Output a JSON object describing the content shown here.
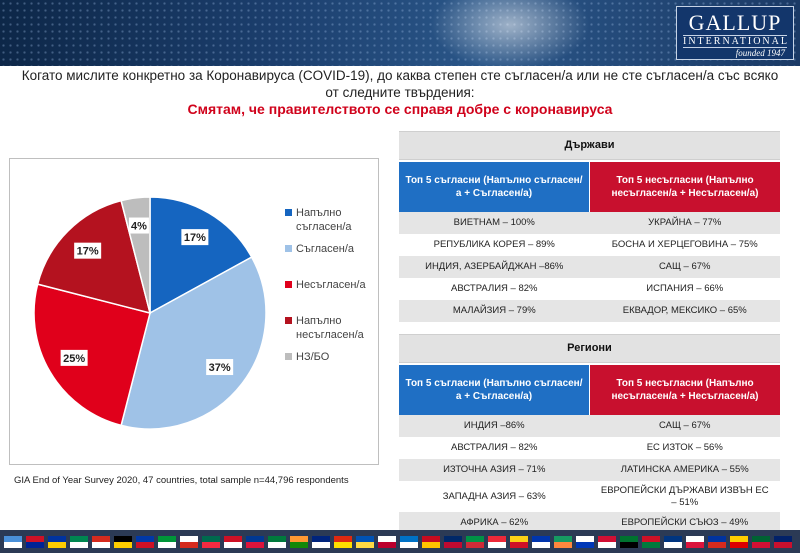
{
  "header": {
    "logo_main": "GALLUP",
    "logo_sub": "INTERNATIONAL",
    "logo_founded": "founded 1947"
  },
  "question": "Когато мислите конкретно за Коронавируса (COVID-19), до каква степен сте съгласен/а или не сте съгласен/а със всяко от следните твърдения:",
  "statement": "Смятам, че правителството се справя добре с коронавируса",
  "chart_data": {
    "type": "pie",
    "labels": [
      "Напълно съгласен/а",
      "Съгласен/а",
      "Несъгласен/а",
      "Напълно несъгласен/а",
      "НЗ/БО"
    ],
    "values": [
      17,
      37,
      25,
      17,
      4
    ],
    "value_labels": [
      "17%",
      "37%",
      "25%",
      "17%",
      "4%"
    ],
    "colors": [
      "#1565c0",
      "#9fc2e7",
      "#e0001b",
      "#b4121f",
      "#bdbdbd"
    ],
    "legend_placement": "right"
  },
  "source": "GIA End of Year Survey 2020, 47 countries,  total sample n=44,796 respondents",
  "countries": {
    "title": "Държави",
    "agree_header": "Топ 5 съгласни (Напълно съгласен/а + Съгласен/а)",
    "disagree_header": "Топ 5 несъгласни (Напълно несъгласен/а + Несъгласен/а)",
    "rows": [
      {
        "agree": "ВИЕТНАМ – 100%",
        "disagree": "УКРАЙНА – 77%"
      },
      {
        "agree": "РЕПУБЛИКА КОРЕЯ – 89%",
        "disagree": "БОСНА И ХЕРЦЕГОВИНА – 75%"
      },
      {
        "agree": "ИНДИЯ, АЗЕРБАЙДЖАН –86%",
        "disagree": "САЩ – 67%"
      },
      {
        "agree": "АВСТРАЛИЯ – 82%",
        "disagree": "ИСПАНИЯ – 66%"
      },
      {
        "agree": "МАЛАЙЗИЯ – 79%",
        "disagree": "ЕКВАДОР, МЕКСИКО – 65%"
      }
    ]
  },
  "regions": {
    "title": "Региони",
    "agree_header": "Топ 5 съгласни (Напълно съгласен/а + Съгласен/а)",
    "disagree_header": "Топ 5 несъгласни (Напълно несъгласен/а + Несъгласен/а)",
    "rows": [
      {
        "agree": "ИНДИЯ –86%",
        "disagree": "САЩ – 67%"
      },
      {
        "agree": "АВСТРАЛИЯ – 82%",
        "disagree": "ЕС ИЗТОК – 56%"
      },
      {
        "agree": "ИЗТОЧНА АЗИЯ – 71%",
        "disagree": "ЛАТИНСКА АМЕРИКА – 55%"
      },
      {
        "agree": "ЗАПАДНА АЗИЯ – 63%",
        "disagree": "ЕВРОПЕЙСКИ ДЪРЖАВИ ИЗВЪН ЕС – 51%"
      },
      {
        "agree": "АФРИКА – 62%",
        "disagree": "ЕВРОПЕЙСКИ СЪЮЗ – 49%"
      }
    ]
  },
  "flag_colors": [
    [
      "#4a90d9",
      "#ffffff"
    ],
    [
      "#ce1126",
      "#002395"
    ],
    [
      "#0033a0",
      "#ffcc00"
    ],
    [
      "#008751",
      "#ffffff"
    ],
    [
      "#d52b1e",
      "#ffffff"
    ],
    [
      "#000000",
      "#ffce00"
    ],
    [
      "#0038a8",
      "#ce1126"
    ],
    [
      "#009639",
      "#ffffff"
    ],
    [
      "#ffffff",
      "#d52b1e"
    ],
    [
      "#006a4e",
      "#f42a41"
    ],
    [
      "#ce1126",
      "#ffffff"
    ],
    [
      "#003893",
      "#dc143c"
    ],
    [
      "#007a3d",
      "#ffffff"
    ],
    [
      "#ff9933",
      "#138808"
    ],
    [
      "#00247d",
      "#ffffff"
    ],
    [
      "#de2910",
      "#ffde00"
    ],
    [
      "#0052b4",
      "#ffda44"
    ],
    [
      "#ffffff",
      "#bc002d"
    ],
    [
      "#0072c6",
      "#ffffff"
    ],
    [
      "#c60b1e",
      "#ffc400"
    ],
    [
      "#002868",
      "#bf0a30"
    ],
    [
      "#009246",
      "#ce2b37"
    ],
    [
      "#ed2939",
      "#ffffff"
    ],
    [
      "#fcd116",
      "#ce1126"
    ],
    [
      "#0035ad",
      "#ffffff"
    ],
    [
      "#169b62",
      "#ff883e"
    ],
    [
      "#ffffff",
      "#0038b8"
    ],
    [
      "#d21034",
      "#ffffff"
    ],
    [
      "#00732f",
      "#000000"
    ],
    [
      "#ce1126",
      "#007a3d"
    ],
    [
      "#003580",
      "#ffffff"
    ],
    [
      "#ffffff",
      "#dc143c"
    ],
    [
      "#0033a0",
      "#d52b1e"
    ],
    [
      "#ffce00",
      "#dd0000"
    ],
    [
      "#006233",
      "#d21034"
    ],
    [
      "#012169",
      "#c8102e"
    ]
  ]
}
